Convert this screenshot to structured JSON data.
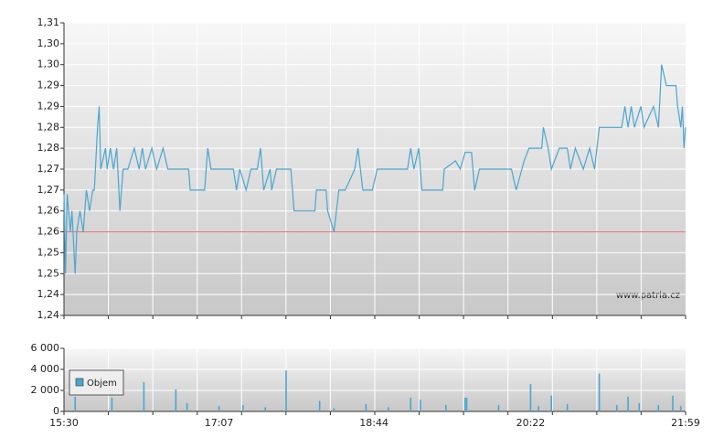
{
  "chart_data": [
    {
      "type": "line",
      "color": "#4ba6cf",
      "reference_line": 1.26,
      "reference_color": "#e46a6a",
      "grid": true,
      "xlim": [
        "15:30",
        "21:59"
      ],
      "ylim": [
        1.24,
        1.31
      ],
      "yticks": [
        {
          "value": 1.24,
          "label": "1,24"
        },
        {
          "value": 1.245,
          "label": "1,24"
        },
        {
          "value": 1.25,
          "label": "1,25"
        },
        {
          "value": 1.255,
          "label": "1,25"
        },
        {
          "value": 1.26,
          "label": "1,26"
        },
        {
          "value": 1.265,
          "label": "1,26"
        },
        {
          "value": 1.27,
          "label": "1,27"
        },
        {
          "value": 1.275,
          "label": "1,27"
        },
        {
          "value": 1.28,
          "label": "1,28"
        },
        {
          "value": 1.285,
          "label": "1,28"
        },
        {
          "value": 1.29,
          "label": "1,29"
        },
        {
          "value": 1.295,
          "label": "1,29"
        },
        {
          "value": 1.3,
          "label": "1,30"
        },
        {
          "value": 1.305,
          "label": "1,30"
        },
        {
          "value": 1.31,
          "label": "1,31"
        }
      ],
      "x": [
        "15:30",
        "15:31",
        "15:32",
        "15:34",
        "15:35",
        "15:37",
        "15:38",
        "15:40",
        "15:42",
        "15:44",
        "15:46",
        "15:48",
        "15:49",
        "15:51",
        "15:52",
        "15:53",
        "15:56",
        "15:57",
        "15:59",
        "16:01",
        "16:03",
        "16:05",
        "16:07",
        "16:10",
        "16:14",
        "16:17",
        "16:19",
        "16:21",
        "16:25",
        "16:28",
        "16:32",
        "16:35",
        "16:48",
        "16:49",
        "16:58",
        "17:00",
        "17:02",
        "17:16",
        "17:18",
        "17:20",
        "17:24",
        "17:27",
        "17:31",
        "17:33",
        "17:35",
        "17:39",
        "17:40",
        "17:43",
        "17:52",
        "17:54",
        "18:07",
        "18:08",
        "18:14",
        "18:15",
        "18:19",
        "18:22",
        "18:26",
        "18:32",
        "18:34",
        "18:37",
        "18:43",
        "18:46",
        "19:05",
        "19:07",
        "19:09",
        "19:12",
        "19:14",
        "19:27",
        "19:28",
        "19:35",
        "19:38",
        "19:41",
        "19:45",
        "19:47",
        "19:50",
        "20:10",
        "20:13",
        "20:18",
        "20:21",
        "20:29",
        "20:30",
        "20:33",
        "20:35",
        "20:40",
        "20:45",
        "20:47",
        "20:50",
        "20:55",
        "20:59",
        "21:02",
        "21:05",
        "21:19",
        "21:21",
        "21:23",
        "21:25",
        "21:27",
        "21:31",
        "21:33",
        "21:39",
        "21:42",
        "21:44",
        "21:47",
        "21:53",
        "21:54",
        "21:56",
        "21:57",
        "21:58",
        "21:59"
      ],
      "values": [
        1.269,
        1.25,
        1.269,
        1.26,
        1.265,
        1.25,
        1.26,
        1.265,
        1.26,
        1.27,
        1.265,
        1.27,
        1.27,
        1.285,
        1.29,
        1.275,
        1.28,
        1.275,
        1.28,
        1.275,
        1.28,
        1.265,
        1.275,
        1.275,
        1.28,
        1.275,
        1.28,
        1.275,
        1.28,
        1.275,
        1.28,
        1.275,
        1.275,
        1.27,
        1.27,
        1.28,
        1.275,
        1.275,
        1.27,
        1.275,
        1.27,
        1.275,
        1.275,
        1.28,
        1.27,
        1.275,
        1.27,
        1.275,
        1.275,
        1.265,
        1.265,
        1.27,
        1.27,
        1.265,
        1.26,
        1.27,
        1.27,
        1.275,
        1.28,
        1.27,
        1.27,
        1.275,
        1.275,
        1.28,
        1.275,
        1.28,
        1.27,
        1.27,
        1.275,
        1.277,
        1.275,
        1.279,
        1.279,
        1.27,
        1.275,
        1.275,
        1.27,
        1.277,
        1.28,
        1.28,
        1.285,
        1.28,
        1.275,
        1.28,
        1.28,
        1.275,
        1.28,
        1.275,
        1.28,
        1.275,
        1.285,
        1.285,
        1.29,
        1.285,
        1.29,
        1.285,
        1.29,
        1.285,
        1.29,
        1.285,
        1.3,
        1.295,
        1.295,
        1.29,
        1.285,
        1.29,
        1.28,
        1.285
      ]
    },
    {
      "type": "bar",
      "grid": true,
      "xlim": [
        "15:30",
        "21:59"
      ],
      "xticks": [
        "15:30",
        "17:07",
        "18:44",
        "20:22",
        "21:59"
      ],
      "ylim": [
        0,
        6000
      ],
      "yticks": [
        0,
        {
          "value": 2000,
          "label": "2 000"
        },
        {
          "value": 4000,
          "label": "4 000"
        },
        {
          "value": 6000,
          "label": "6 000"
        }
      ],
      "series": [
        {
          "name": "Objem",
          "color": "#4ba6cf",
          "x": [
            "15:37",
            "16:00",
            "16:20",
            "16:40",
            "16:47",
            "17:07",
            "17:22",
            "17:36",
            "17:49",
            "18:10",
            "18:19",
            "18:39",
            "18:53",
            "19:07",
            "19:13",
            "19:29",
            "19:41",
            "19:42",
            "20:02",
            "20:22",
            "20:27",
            "20:35",
            "20:45",
            "21:05",
            "21:16",
            "21:23",
            "21:30",
            "21:42",
            "21:51",
            "21:56"
          ],
          "values": [
            1400,
            1300,
            2800,
            2100,
            800,
            500,
            600,
            400,
            3900,
            1000,
            300,
            700,
            400,
            1300,
            1100,
            600,
            1300,
            1300,
            600,
            2600,
            500,
            1500,
            700,
            3600,
            600,
            1400,
            800,
            600,
            1500,
            500
          ]
        }
      ]
    }
  ],
  "watermark": "www.patria.cz"
}
